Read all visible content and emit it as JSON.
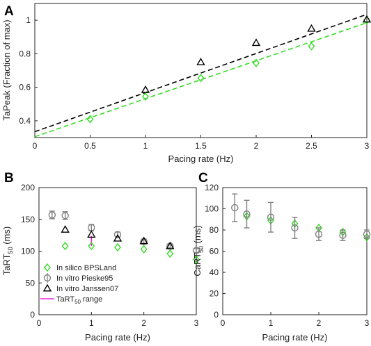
{
  "chart_data": [
    {
      "panel": "A",
      "type": "scatter",
      "xlabel": "Pacing rate (Hz)",
      "ylabel": "TaPeak (Fraction of max)",
      "xlim": [
        0,
        3
      ],
      "ylim": [
        0.3,
        1.1
      ],
      "xticks": [
        "0",
        "0.5",
        "1",
        "1.5",
        "2",
        "2.5",
        "3"
      ],
      "yticks": [
        "0.4",
        "0.6",
        "0.8",
        "1"
      ],
      "grid": false,
      "series": [
        {
          "marker": "diamond",
          "color": "#33dd22",
          "x": [
            0.5,
            1,
            1.5,
            2,
            2.5,
            3
          ],
          "y": [
            0.41,
            0.545,
            0.655,
            0.745,
            0.845,
            1.0
          ]
        },
        {
          "marker": "triangle",
          "color": "#000000",
          "x": [
            1,
            1.5,
            2,
            2.5,
            3
          ],
          "y": [
            0.585,
            0.75,
            0.865,
            0.95,
            1.005
          ]
        }
      ],
      "fit_lines": [
        {
          "color": "#000000",
          "style": "dashed",
          "x": [
            0,
            3
          ],
          "y": [
            0.335,
            1.035
          ]
        },
        {
          "color": "#33dd22",
          "style": "dashed",
          "x": [
            0,
            3
          ],
          "y": [
            0.305,
            0.985
          ]
        }
      ]
    },
    {
      "panel": "B",
      "type": "scatter",
      "xlabel": "Pacing rate (Hz)",
      "ylabel_main": "TaRT",
      "ylabel_sub": "50",
      "ylabel_unit": " (ms)",
      "xlim": [
        0,
        3
      ],
      "ylim": [
        0,
        200
      ],
      "xticks": [
        "0",
        "1",
        "2",
        "3"
      ],
      "yticks": [
        "0",
        "50",
        "100",
        "150",
        "200"
      ],
      "grid": false,
      "legend_position": "bottom-left",
      "series": [
        {
          "name": "In silico BPSLand",
          "marker": "diamond",
          "color": "#33dd22",
          "x": [
            0.5,
            1,
            1.5,
            2,
            2.5,
            3
          ],
          "y": [
            108,
            108,
            106,
            103,
            96,
            87
          ]
        },
        {
          "name": "In vitro Pieske95",
          "marker": "circle",
          "color": "#808080",
          "x": [
            0.25,
            0.5,
            1,
            1.5,
            2,
            2.5,
            3
          ],
          "y": [
            157,
            156,
            137,
            126,
            115,
            108,
            101
          ],
          "error": [
            6,
            6,
            5,
            4,
            4,
            3,
            3
          ]
        },
        {
          "name": "In vitro Janssen07",
          "marker": "triangle",
          "color": "#000000",
          "x": [
            0.5,
            1,
            1.5,
            2,
            2.5
          ],
          "y": [
            134,
            126,
            120,
            116,
            108
          ]
        }
      ],
      "range_series": {
        "name_main": "TaRT",
        "name_sub": "50",
        "name_suffix": " range",
        "color": "#ee22dd",
        "x": 1,
        "y": [
          108,
          124
        ]
      }
    },
    {
      "panel": "C",
      "type": "scatter",
      "xlabel": "Pacing rate (Hz)",
      "ylabel_main": "CaRT",
      "ylabel_sub": "50",
      "ylabel_unit": " (ms)",
      "xlim": [
        0,
        3
      ],
      "ylim": [
        0,
        120
      ],
      "xticks": [
        "0",
        "1",
        "2",
        "3"
      ],
      "yticks": [
        "0",
        "20",
        "40",
        "60",
        "80",
        "100",
        "120"
      ],
      "grid": false,
      "series": [
        {
          "marker": "diamond",
          "color": "#33dd22",
          "x": [
            0.5,
            1,
            1.5,
            2,
            2.5,
            3
          ],
          "y": [
            93,
            89,
            86,
            82,
            78,
            73
          ]
        },
        {
          "marker": "circle",
          "color": "#808080",
          "x": [
            0.25,
            0.5,
            1,
            1.5,
            2,
            2.5,
            3
          ],
          "y": [
            101,
            95,
            92,
            82,
            76,
            75,
            76
          ],
          "error": [
            13,
            13,
            14,
            10,
            6,
            5,
            4
          ]
        }
      ]
    }
  ]
}
